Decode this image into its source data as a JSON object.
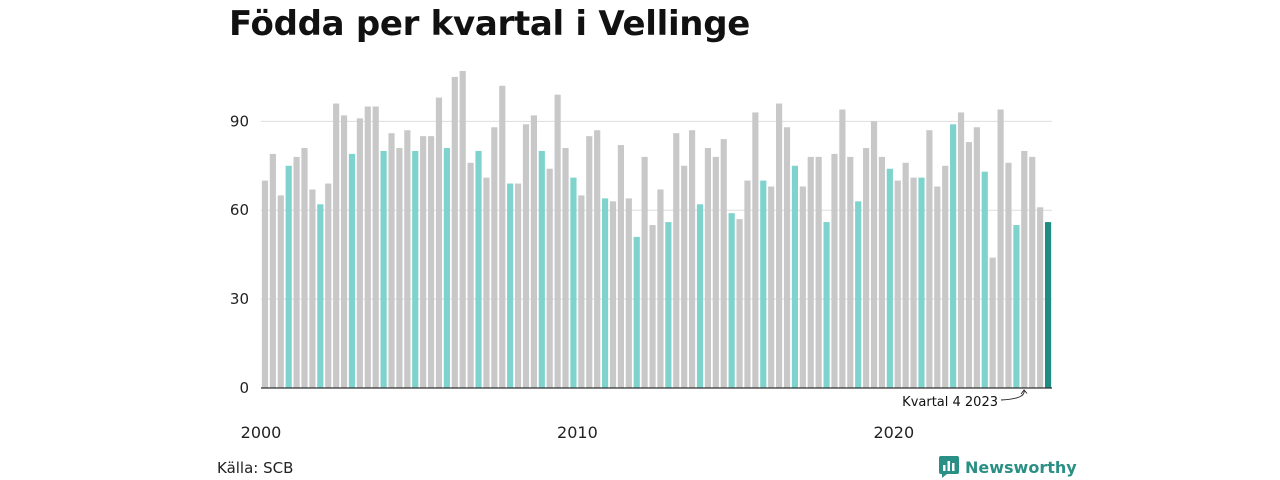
{
  "title": "Födda per kvartal i Vellinge",
  "source": "Källa: SCB",
  "brand": "Newsworthy",
  "colors": {
    "default": "#c8c8c8",
    "quarter": "#7fd3cd",
    "latest": "#1e8c80",
    "grid": "#dddddd",
    "brand": "#2a8f84"
  },
  "chart_data": {
    "type": "bar",
    "title": "Födda per kvartal i Vellinge",
    "ylim": [
      0,
      120
    ],
    "yticks": [
      0,
      30,
      60,
      90
    ],
    "year_labels": [
      {
        "label": "2000",
        "index": 0
      },
      {
        "label": "2010",
        "index": 40
      },
      {
        "label": "2020",
        "index": 80
      }
    ],
    "annotation": {
      "text": "Kvartal 4 2023",
      "index": 99
    },
    "values": [
      70,
      79,
      65,
      75,
      78,
      81,
      67,
      62,
      69,
      96,
      92,
      79,
      91,
      95,
      95,
      80,
      86,
      81,
      87,
      80,
      85,
      85,
      98,
      81,
      105,
      107,
      76,
      80,
      71,
      88,
      102,
      69,
      69,
      89,
      92,
      80,
      74,
      99,
      81,
      71,
      65,
      85,
      87,
      64,
      63,
      82,
      64,
      51,
      78,
      55,
      67,
      56,
      86,
      75,
      87,
      62,
      81,
      78,
      84,
      59,
      57,
      70,
      93,
      70,
      68,
      96,
      88,
      75,
      68,
      78,
      78,
      56,
      79,
      94,
      78,
      63,
      81,
      90,
      78,
      74,
      70,
      76,
      71,
      71,
      87,
      68,
      75,
      89,
      93,
      83,
      88,
      73,
      44,
      94,
      76,
      55,
      80,
      78,
      61,
      56
    ]
  }
}
